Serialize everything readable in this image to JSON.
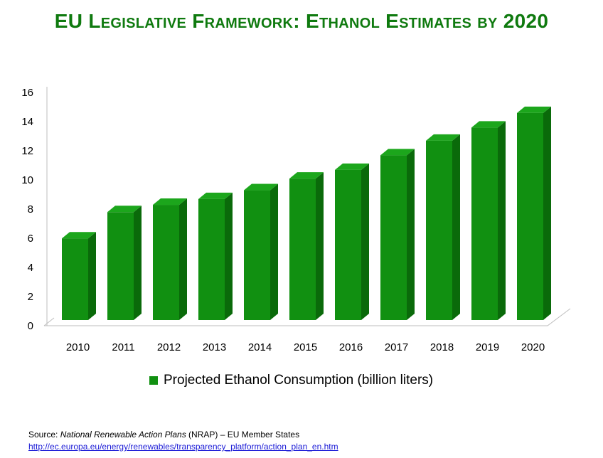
{
  "title": "EU Legislative Framework: Ethanol Estimates by 2020",
  "legend": {
    "label": "Projected Ethanol Consumption (billion liters)"
  },
  "source": {
    "prefix": "Source: ",
    "italic": "National Renewable Action Plans",
    "suffix": " (NRAP) – EU Member States",
    "link": "http://ec.europa.eu/energy/renewables/transparency_platform/action_plan_en.htm"
  },
  "colors": {
    "bar_front": "#119011",
    "bar_side": "#0a6a0a",
    "bar_top": "#1ca61c"
  },
  "chart_data": {
    "type": "bar",
    "categories": [
      "2010",
      "2011",
      "2012",
      "2013",
      "2014",
      "2015",
      "2016",
      "2017",
      "2018",
      "2019",
      "2020"
    ],
    "series": [
      {
        "name": "Projected Ethanol Consumption (billion liters)",
        "values": [
          5.6,
          7.4,
          7.9,
          8.3,
          8.9,
          9.7,
          10.3,
          11.3,
          12.3,
          13.2,
          14.2
        ]
      }
    ],
    "ylim": [
      0,
      16
    ],
    "yticks": [
      0,
      2,
      4,
      6,
      8,
      10,
      12,
      14,
      16
    ],
    "legend_position": "bottom",
    "grid": false
  }
}
